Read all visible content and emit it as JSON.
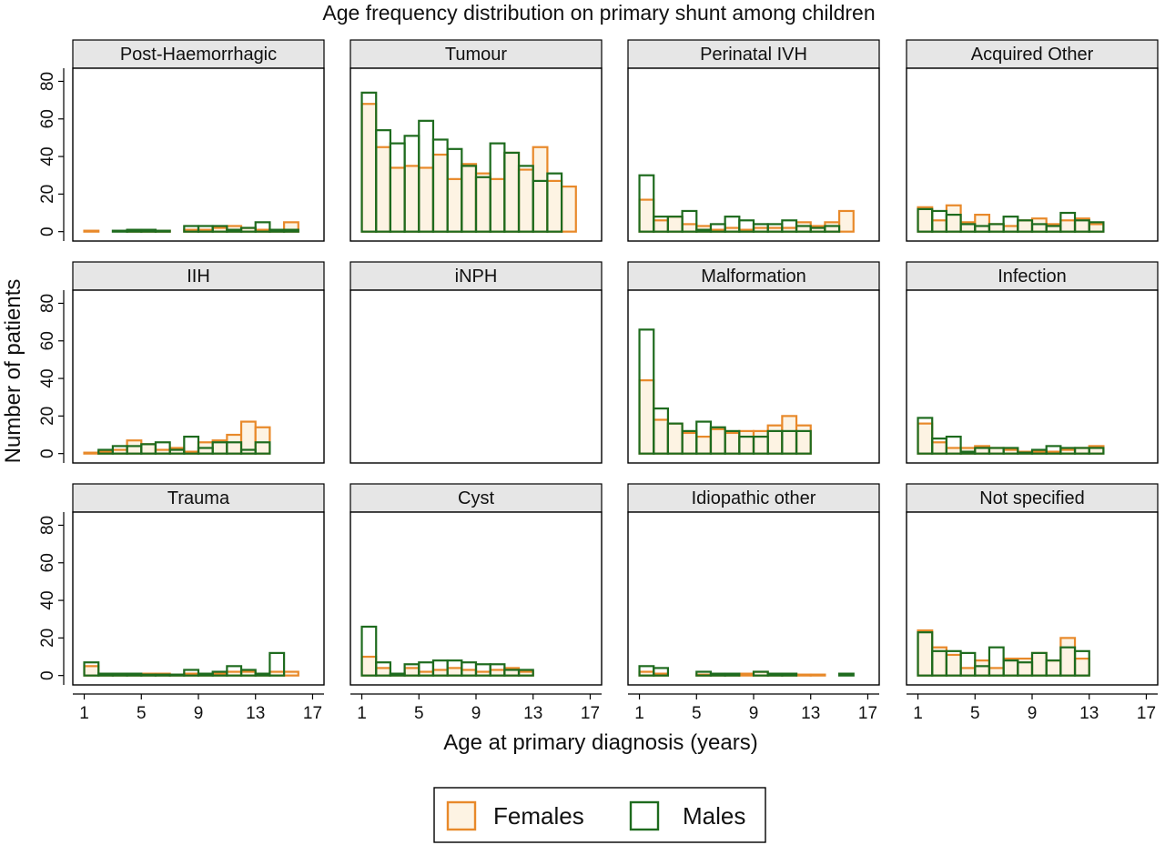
{
  "chart_data": {
    "type": "bar",
    "title": "Age frequency distribution on primary shunt among children",
    "xlabel": "Age at primary diagnosis (years)",
    "ylabel": "Number of patients",
    "xlim": [
      0.2,
      17.8
    ],
    "ylim": [
      -5,
      87
    ],
    "x_ticks": [
      "1",
      "5",
      "9",
      "13",
      "17"
    ],
    "y_ticks": [
      "0",
      "20",
      "40",
      "60",
      "80"
    ],
    "grid": false,
    "legend_placement": "bottom-center",
    "x": [
      1,
      2,
      3,
      4,
      5,
      6,
      7,
      8,
      9,
      10,
      11,
      12,
      13,
      14,
      15,
      16
    ],
    "colors": {
      "Females": "#e8892a",
      "Males": "#1e6b1e",
      "female_fill": "#fdf3e3"
    },
    "series_names": [
      "Females",
      "Males"
    ],
    "panels": [
      {
        "name": "Post-Haemorrhagic",
        "series": [
          {
            "name": "Females",
            "values": [
              0.5,
              null,
              null,
              0.5,
              0.5,
              0.5,
              null,
              1,
              1,
              2,
              3,
              2,
              1,
              1,
              5,
              null
            ]
          },
          {
            "name": "Males",
            "values": [
              null,
              null,
              0.5,
              1,
              1,
              0.5,
              null,
              3,
              3,
              3,
              1,
              2,
              5,
              1,
              1,
              null
            ]
          }
        ]
      },
      {
        "name": "Tumour",
        "series": [
          {
            "name": "Females",
            "values": [
              68,
              45,
              34,
              35,
              34,
              41,
              28,
              36,
              31,
              28,
              42,
              33,
              45,
              27,
              24,
              null
            ]
          },
          {
            "name": "Males",
            "values": [
              74,
              54,
              47,
              51,
              59,
              49,
              44,
              35,
              29,
              47,
              42,
              35,
              27,
              31,
              null,
              null
            ]
          }
        ]
      },
      {
        "name": "Perinatal IVH",
        "series": [
          {
            "name": "Females",
            "values": [
              17,
              6,
              8,
              4,
              3,
              1,
              2,
              1,
              2,
              2,
              2,
              5,
              3,
              5,
              11,
              null
            ]
          },
          {
            "name": "Males",
            "values": [
              30,
              8,
              8,
              11,
              1,
              4,
              8,
              6,
              4,
              4,
              6,
              3,
              2,
              3,
              null,
              null
            ]
          }
        ]
      },
      {
        "name": "Acquired Other",
        "series": [
          {
            "name": "Females",
            "values": [
              13,
              6,
              14,
              5,
              9,
              4,
              3,
              6,
              7,
              4,
              6,
              7,
              4,
              null,
              null,
              null
            ]
          },
          {
            "name": "Males",
            "values": [
              12,
              11,
              9,
              4,
              3,
              4,
              8,
              6,
              4,
              3,
              10,
              6,
              5,
              null,
              null,
              null
            ]
          }
        ]
      },
      {
        "name": "IIH",
        "series": [
          {
            "name": "Females",
            "values": [
              0.5,
              1,
              2,
              7,
              5,
              2,
              3,
              1,
              6,
              7,
              10,
              17,
              14,
              null,
              null,
              null
            ]
          },
          {
            "name": "Males",
            "values": [
              null,
              2,
              4,
              4,
              5,
              6,
              2,
              9,
              3,
              6,
              6,
              2,
              6,
              null,
              null,
              null
            ]
          }
        ]
      },
      {
        "name": "iNPH",
        "series": [
          {
            "name": "Females",
            "values": []
          },
          {
            "name": "Males",
            "values": []
          }
        ]
      },
      {
        "name": "Malformation",
        "series": [
          {
            "name": "Females",
            "values": [
              39,
              18,
              16,
              11,
              9,
              13,
              11,
              12,
              12,
              15,
              20,
              15,
              null,
              null,
              null,
              null
            ]
          },
          {
            "name": "Males",
            "values": [
              66,
              24,
              16,
              12,
              17,
              14,
              12,
              9,
              9,
              12,
              12,
              12,
              null,
              null,
              null,
              null
            ]
          }
        ]
      },
      {
        "name": "Infection",
        "series": [
          {
            "name": "Females",
            "values": [
              16,
              6,
              3,
              3,
              4,
              3,
              2,
              1,
              1,
              1,
              2,
              3,
              4,
              null,
              null,
              null
            ]
          },
          {
            "name": "Males",
            "values": [
              19,
              8,
              9,
              1,
              3,
              3,
              3,
              0.5,
              2,
              4,
              3,
              3,
              3,
              null,
              null,
              null
            ]
          }
        ]
      },
      {
        "name": "Trauma",
        "series": [
          {
            "name": "Females",
            "values": [
              5,
              1,
              1,
              1,
              1,
              1,
              0.5,
              1,
              1,
              1,
              2,
              2,
              1,
              2,
              2,
              null
            ]
          },
          {
            "name": "Males",
            "values": [
              7,
              1,
              1,
              1,
              0.5,
              0.5,
              0.5,
              3,
              1,
              2,
              5,
              3,
              1,
              12,
              null,
              null
            ]
          }
        ]
      },
      {
        "name": "Cyst",
        "series": [
          {
            "name": "Females",
            "values": [
              10,
              4,
              1,
              4,
              2,
              3,
              4,
              3,
              2,
              3,
              4,
              2,
              null,
              null,
              null,
              null
            ]
          },
          {
            "name": "Males",
            "values": [
              26,
              7,
              1,
              6,
              7,
              8,
              8,
              7,
              6,
              6,
              3,
              3,
              null,
              null,
              null,
              null
            ]
          }
        ]
      },
      {
        "name": "Idiopathic other",
        "series": [
          {
            "name": "Females",
            "values": [
              2,
              1,
              null,
              null,
              0.5,
              0.5,
              0.5,
              1,
              2,
              1,
              1,
              0.5,
              0.5,
              null,
              null,
              null
            ]
          },
          {
            "name": "Males",
            "values": [
              5,
              4,
              null,
              null,
              2,
              1,
              1,
              null,
              2,
              1,
              1,
              null,
              null,
              null,
              1,
              null
            ]
          }
        ]
      },
      {
        "name": "Not specified",
        "series": [
          {
            "name": "Females",
            "values": [
              24,
              15,
              11,
              4,
              8,
              4,
              9,
              9,
              12,
              8,
              20,
              9,
              null,
              null,
              null,
              null
            ]
          },
          {
            "name": "Males",
            "values": [
              23,
              13,
              13,
              12,
              5,
              15,
              8,
              7,
              12,
              8,
              15,
              13,
              null,
              null,
              null,
              null
            ]
          }
        ]
      }
    ]
  },
  "legend": {
    "females_label": "Females",
    "males_label": "Males"
  }
}
